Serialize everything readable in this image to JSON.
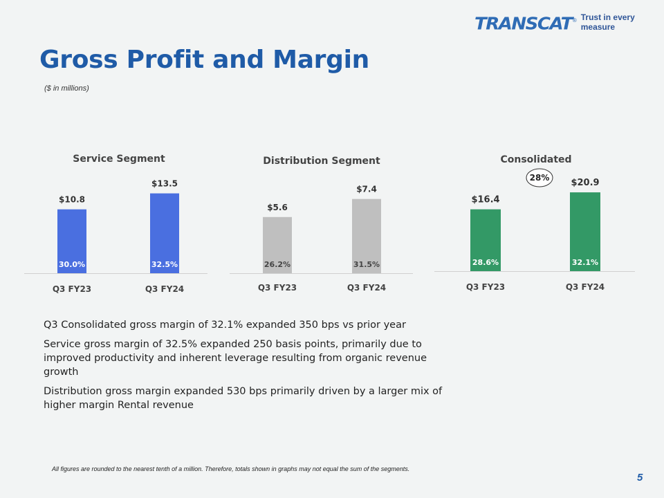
{
  "logo": {
    "word": "TRANSCAT",
    "reg": "®",
    "tagline": "Trust in every measure"
  },
  "header": {
    "title": "Gross Profit and Margin",
    "subtitle": "($ in millions)"
  },
  "colors": {
    "service": "#4a6fe0",
    "distribution": "#bfbfbf",
    "consolidated": "#339966",
    "title": "#1f5ba7"
  },
  "chart_data": [
    {
      "type": "bar",
      "title": "Service Segment",
      "categories": [
        "Q3 FY23",
        "Q3 FY24"
      ],
      "values": [
        10.8,
        13.5
      ],
      "value_labels": [
        "$10.8",
        "$13.5"
      ],
      "margin_labels": [
        "30.0%",
        "32.5%"
      ],
      "ylim": [
        0,
        14
      ]
    },
    {
      "type": "bar",
      "title": "Distribution Segment",
      "categories": [
        "Q3 FY23",
        "Q3 FY24"
      ],
      "values": [
        5.6,
        7.4
      ],
      "value_labels": [
        "$5.6",
        "$7.4"
      ],
      "margin_labels": [
        "26.2%",
        "31.5%"
      ],
      "ylim": [
        0,
        8
      ]
    },
    {
      "type": "bar",
      "title": "Consolidated",
      "categories": [
        "Q3 FY23",
        "Q3 FY24"
      ],
      "values": [
        16.4,
        20.9
      ],
      "value_labels": [
        "$16.4",
        "$20.9"
      ],
      "margin_labels": [
        "28.6%",
        "32.1%"
      ],
      "growth_label": "28%",
      "ylim": [
        0,
        21
      ]
    }
  ],
  "bullets": [
    "Q3 Consolidated gross margin of 32.1% expanded 350 bps vs prior year",
    "Service gross margin of 32.5% expanded 250 basis points, primarily due to improved productivity and inherent leverage resulting from organic revenue growth",
    "Distribution gross margin expanded 530 bps primarily driven by a larger mix of higher margin Rental revenue"
  ],
  "footnote": "All figures are rounded to the nearest tenth of a million. Therefore, totals shown in graphs may not equal the sum of the segments.",
  "page_number": "5"
}
